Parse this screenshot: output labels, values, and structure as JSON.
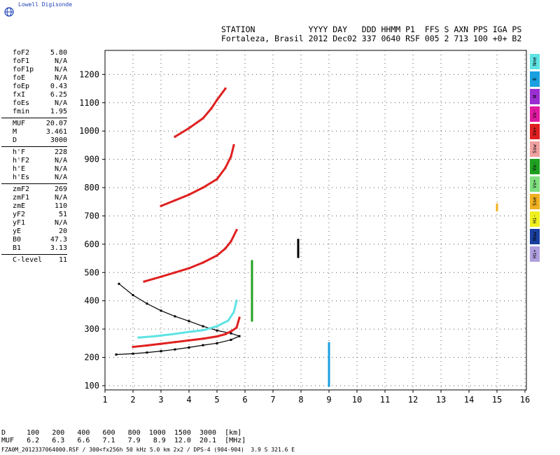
{
  "logo": {
    "text": "Lowell Digisonde",
    "icon": "globe-icon"
  },
  "header": {
    "line1": "STATION           YYYY DAY   DDD HHMM P1  FFS S AXN PPS IGA PS",
    "line2": "Fortaleza, Brasil 2012 Dec02 337 0640 RSF 005 2 713 100 +0+ B2"
  },
  "params": [
    {
      "label": "foF2",
      "value": "5.80"
    },
    {
      "label": "foF1",
      "value": "N/A"
    },
    {
      "label": "foF1p",
      "value": "N/A"
    },
    {
      "label": "foE",
      "value": "N/A"
    },
    {
      "label": "foEp",
      "value": "0.43"
    },
    {
      "label": "fxI",
      "value": "6.25"
    },
    {
      "label": "foEs",
      "value": "N/A"
    },
    {
      "label": "fmin",
      "value": "1.95"
    },
    {
      "label": "MUF",
      "value": "20.07"
    },
    {
      "label": "M",
      "value": "3.461"
    },
    {
      "label": "D",
      "value": "3000"
    },
    {
      "label": "h'F",
      "value": "228"
    },
    {
      "label": "h'F2",
      "value": "N/A"
    },
    {
      "label": "h'E",
      "value": "N/A"
    },
    {
      "label": "h'Es",
      "value": "N/A"
    },
    {
      "label": "zmF2",
      "value": "269"
    },
    {
      "label": "zmF1",
      "value": "N/A"
    },
    {
      "label": "zmE",
      "value": "110"
    },
    {
      "label": "yF2",
      "value": "51"
    },
    {
      "label": "yF1",
      "value": "N/A"
    },
    {
      "label": "yE",
      "value": "20"
    },
    {
      "label": "B0",
      "value": "47.3"
    },
    {
      "label": "B1",
      "value": "3.13"
    },
    {
      "label": "C-level",
      "value": "11"
    }
  ],
  "legend": [
    {
      "label": "Nne",
      "color": "#5fe3e3"
    },
    {
      "label": "E",
      "color": "#1aa0e0"
    },
    {
      "label": "W",
      "color": "#9a2ed0"
    },
    {
      "label": "Vo-",
      "color": "#e01aa0"
    },
    {
      "label": "Vo+",
      "color": "#e02020"
    },
    {
      "label": "Ssw",
      "color": "#f0a0a0"
    },
    {
      "label": "Vo-",
      "color": "#20a020"
    },
    {
      "label": "Vo+",
      "color": "#80e080"
    },
    {
      "label": "Sse",
      "color": "#f0b020"
    },
    {
      "label": "Hi-",
      "color": "#f0f020"
    },
    {
      "label": "Nnw",
      "color": "#1a40a0"
    },
    {
      "label": "Hi+",
      "color": "#b0a0e0"
    }
  ],
  "footer": {
    "line1": "D     100   200   400   600   800  1000  1500  3000  [km]",
    "line2": "MUF   6.2   6.3   6.6   7.1   7.9   8.9  12.0  20.1  [MHz]",
    "line3": "FZA0M_2012337064000.RSF / 300<fx256h 50 kHz 5.0 km 2x2 / DPS-4 (904-904)  3.9 S 321.6 E"
  },
  "chart_data": {
    "type": "scatter",
    "title": "",
    "xlabel": "",
    "ylabel": "",
    "xlim": [
      1,
      16.05
    ],
    "ylim": [
      85,
      1285
    ],
    "xticks": [
      1,
      2,
      3,
      4,
      5,
      6,
      7,
      8,
      9,
      10,
      11,
      12,
      13,
      14,
      15,
      16
    ],
    "yticks": [
      100,
      200,
      300,
      400,
      500,
      600,
      700,
      800,
      900,
      1000,
      1100,
      1200
    ],
    "grid": true,
    "series": [
      {
        "color": "#000000",
        "values": [
          [
            1.5,
            460
          ],
          [
            2.0,
            420
          ],
          [
            2.5,
            390
          ],
          [
            3.0,
            365
          ],
          [
            3.5,
            345
          ],
          [
            4.0,
            328
          ],
          [
            4.5,
            310
          ],
          [
            5.0,
            295
          ],
          [
            5.5,
            285
          ],
          [
            5.8,
            275
          ],
          [
            5.5,
            262
          ],
          [
            5.0,
            250
          ],
          [
            4.5,
            243
          ],
          [
            4.0,
            235
          ],
          [
            3.5,
            228
          ],
          [
            3.0,
            222
          ],
          [
            2.5,
            217
          ],
          [
            2.0,
            213
          ],
          [
            1.4,
            210
          ]
        ]
      },
      {
        "color": "#e02020",
        "values": [
          [
            2.0,
            237
          ],
          [
            2.5,
            242
          ],
          [
            3.0,
            248
          ],
          [
            3.5,
            254
          ],
          [
            4.0,
            260
          ],
          [
            4.5,
            266
          ],
          [
            5.0,
            274
          ],
          [
            5.3,
            282
          ],
          [
            5.5,
            292
          ],
          [
            5.7,
            305
          ],
          [
            5.8,
            340
          ]
        ]
      },
      {
        "color": "#5fe3e3",
        "values": [
          [
            2.2,
            270
          ],
          [
            2.8,
            275
          ],
          [
            3.5,
            283
          ],
          [
            4.0,
            290
          ],
          [
            4.5,
            296
          ],
          [
            5.0,
            310
          ],
          [
            5.4,
            330
          ],
          [
            5.6,
            360
          ],
          [
            5.7,
            400
          ]
        ]
      },
      {
        "color": "#e02020",
        "values": [
          [
            2.4,
            468
          ],
          [
            3.0,
            485
          ],
          [
            3.5,
            500
          ],
          [
            4.0,
            515
          ],
          [
            4.5,
            535
          ],
          [
            5.0,
            560
          ],
          [
            5.3,
            585
          ],
          [
            5.5,
            610
          ],
          [
            5.7,
            650
          ]
        ]
      },
      {
        "color": "#e02020",
        "values": [
          [
            3.0,
            735
          ],
          [
            3.5,
            755
          ],
          [
            4.0,
            775
          ],
          [
            4.5,
            800
          ],
          [
            5.0,
            830
          ],
          [
            5.3,
            870
          ],
          [
            5.5,
            910
          ],
          [
            5.6,
            950
          ]
        ]
      },
      {
        "color": "#e02020",
        "values": [
          [
            3.5,
            980
          ],
          [
            4.0,
            1010
          ],
          [
            4.5,
            1045
          ],
          [
            4.8,
            1080
          ],
          [
            5.0,
            1110
          ],
          [
            5.3,
            1150
          ]
        ]
      },
      {
        "color": "#20a020",
        "values": [
          [
            6.25,
            330
          ],
          [
            6.25,
            380
          ],
          [
            6.25,
            430
          ],
          [
            6.25,
            480
          ],
          [
            6.25,
            540
          ]
        ]
      },
      {
        "color": "#000000",
        "values": [
          [
            7.9,
            555
          ],
          [
            7.9,
            615
          ]
        ]
      },
      {
        "color": "#1aa0e0",
        "values": [
          [
            9.0,
            100
          ],
          [
            9.0,
            150
          ],
          [
            9.0,
            200
          ],
          [
            9.0,
            250
          ]
        ]
      },
      {
        "color": "#f0b020",
        "values": [
          [
            15.0,
            720
          ],
          [
            15.0,
            740
          ]
        ]
      }
    ]
  }
}
